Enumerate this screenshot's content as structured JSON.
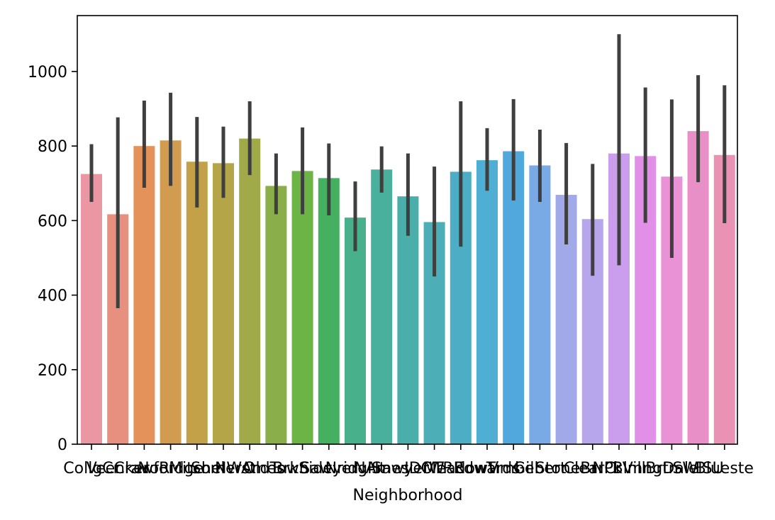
{
  "chart_data": {
    "type": "bar",
    "title": "",
    "xlabel": "Neighborhood",
    "ylabel": "",
    "ylim": [
      0,
      1150
    ],
    "yticks": [
      0,
      200,
      400,
      600,
      800,
      1000
    ],
    "grid": false,
    "legend": "none",
    "error_bar_color": "#3f3f3f",
    "categories": [
      "CollgCr",
      "Veenker",
      "Crawfor",
      "NoRidge",
      "Mitchel",
      "Somerst",
      "NWAmes",
      "OldTown",
      "BrkSide",
      "Sawyer",
      "NridgHt",
      "NAmes",
      "SawyerW",
      "IDOTRR",
      "MeadowV",
      "Edwards",
      "Timber",
      "Gilbert",
      "StoneBr",
      "ClearCr",
      "NPkVill",
      "Blmngtn",
      "BrDale",
      "SWISU",
      "Blueste"
    ],
    "values": [
      725,
      617,
      800,
      815,
      758,
      754,
      820,
      693,
      733,
      714,
      608,
      737,
      665,
      596,
      731,
      762,
      786,
      748,
      669,
      604,
      780,
      773,
      718,
      840,
      776
    ],
    "ci_low": [
      650,
      365,
      688,
      693,
      635,
      661,
      722,
      617,
      617,
      614,
      518,
      675,
      559,
      450,
      530,
      680,
      654,
      650,
      536,
      452,
      480,
      594,
      500,
      703,
      593
    ],
    "ci_high": [
      805,
      877,
      922,
      943,
      878,
      852,
      920,
      780,
      850,
      807,
      705,
      799,
      780,
      745,
      920,
      848,
      926,
      844,
      808,
      752,
      1100,
      957,
      925,
      990,
      963
    ],
    "colors": [
      "#ea96a3",
      "#e8907f",
      "#e49259",
      "#d29c50",
      "#c3a149",
      "#b3a548",
      "#a0aa48",
      "#8aae49",
      "#6db447",
      "#45b160",
      "#48b08a",
      "#4ab09e",
      "#4aafab",
      "#4cafb8",
      "#4dadc4",
      "#4faed3",
      "#50a8dd",
      "#7aaae5",
      "#a2a9e8",
      "#b8a6ed",
      "#ca9ded",
      "#e290e7",
      "#e992d6",
      "#e88fc7",
      "#ea92b4"
    ]
  }
}
